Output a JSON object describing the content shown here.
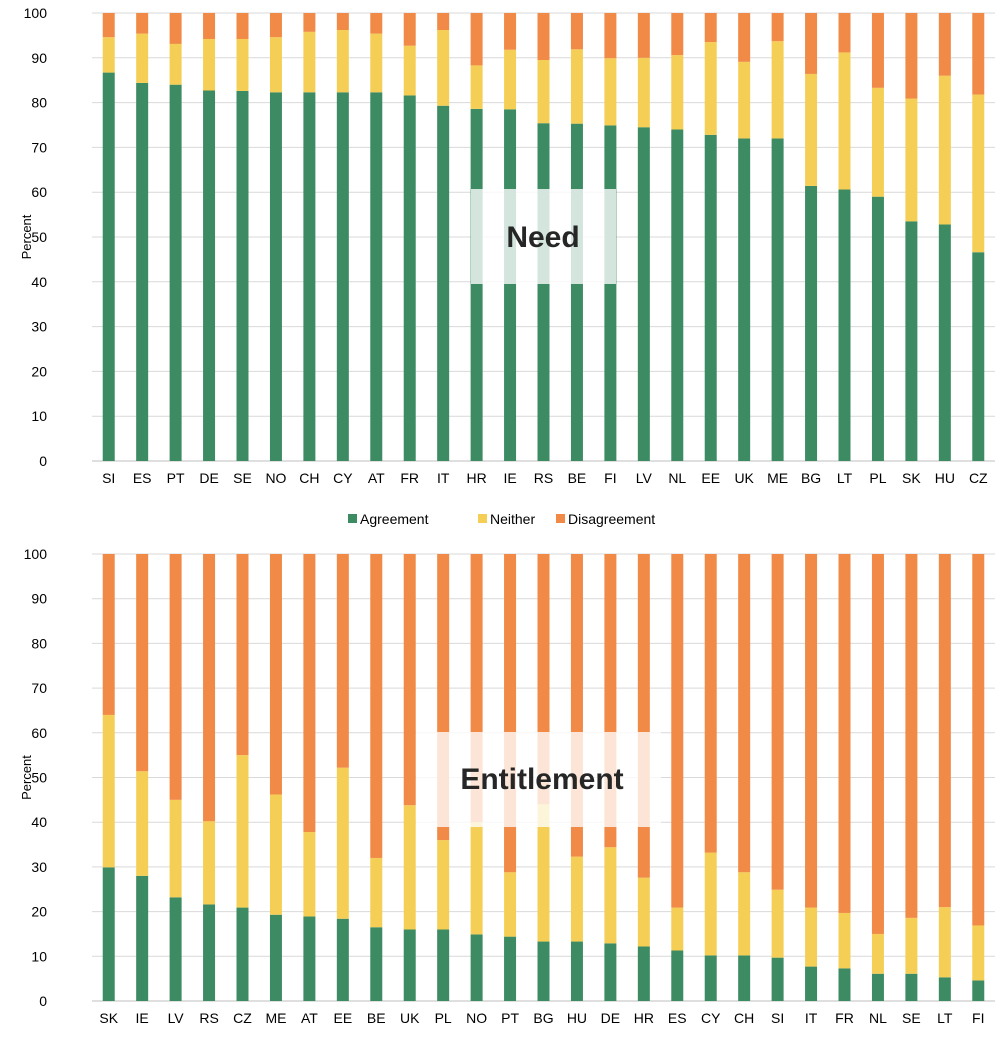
{
  "colors": {
    "agreement": "#3d8b63",
    "neither": "#f5cf55",
    "disagreement": "#f08a46",
    "grid": "#d9d9d9",
    "axis": "#bfbfbf"
  },
  "legend": [
    "Agreement",
    "Neither",
    "Disagreement"
  ],
  "chart_data": [
    {
      "type": "bar",
      "stacked": true,
      "overlay_label": "Need",
      "ylabel": "Percent",
      "ylim": [
        0,
        100
      ],
      "yticks": [
        0,
        10,
        20,
        30,
        40,
        50,
        60,
        70,
        80,
        90,
        100
      ],
      "grid": true,
      "categories": [
        "SI",
        "ES",
        "PT",
        "DE",
        "SE",
        "NO",
        "CH",
        "CY",
        "AT",
        "FR",
        "IT",
        "HR",
        "IE",
        "RS",
        "BE",
        "FI",
        "LV",
        "NL",
        "EE",
        "UK",
        "ME",
        "BG",
        "LT",
        "PL",
        "SK",
        "HU",
        "CZ"
      ],
      "series": [
        {
          "name": "Agreement",
          "values": [
            86.7,
            84.4,
            84.0,
            82.7,
            82.6,
            82.3,
            82.3,
            82.3,
            82.3,
            81.6,
            79.3,
            78.6,
            78.5,
            75.4,
            75.3,
            74.9,
            74.5,
            74.0,
            72.8,
            72.0,
            72.0,
            61.4,
            60.6,
            59.0,
            53.5,
            52.8,
            46.6
          ]
        },
        {
          "name": "Neither",
          "values": [
            7.9,
            11.0,
            9.1,
            11.5,
            11.6,
            12.3,
            13.5,
            13.9,
            13.1,
            11.1,
            16.9,
            9.7,
            13.3,
            14.1,
            16.6,
            15.0,
            15.5,
            16.6,
            20.7,
            17.1,
            21.7,
            25.0,
            30.6,
            24.3,
            27.4,
            33.2,
            35.2
          ]
        },
        {
          "name": "Disagreement",
          "values": [
            5.4,
            4.6,
            6.9,
            5.8,
            5.8,
            5.4,
            4.2,
            3.8,
            4.6,
            7.3,
            3.8,
            11.7,
            8.2,
            10.5,
            8.1,
            10.1,
            10.0,
            9.4,
            6.5,
            10.9,
            6.3,
            13.6,
            8.8,
            16.7,
            19.1,
            14.0,
            18.2
          ]
        }
      ]
    },
    {
      "type": "bar",
      "stacked": true,
      "overlay_label": "Entitlement",
      "ylabel": "Percent",
      "ylim": [
        0,
        100
      ],
      "yticks": [
        0,
        10,
        20,
        30,
        40,
        50,
        60,
        70,
        80,
        90,
        100
      ],
      "grid": true,
      "categories": [
        "SK",
        "IE",
        "LV",
        "RS",
        "CZ",
        "ME",
        "AT",
        "EE",
        "BE",
        "UK",
        "PL",
        "NO",
        "PT",
        "BG",
        "HU",
        "DE",
        "HR",
        "ES",
        "CY",
        "CH",
        "SI",
        "IT",
        "FR",
        "NL",
        "SE",
        "LT",
        "FI"
      ],
      "series": [
        {
          "name": "Agreement",
          "values": [
            29.9,
            28.0,
            23.2,
            21.6,
            20.9,
            19.3,
            18.9,
            18.4,
            16.5,
            16.0,
            16.0,
            14.9,
            14.4,
            13.3,
            13.3,
            12.9,
            12.2,
            11.3,
            10.2,
            10.2,
            9.7,
            7.7,
            7.3,
            6.1,
            6.1,
            5.3,
            4.6
          ]
        },
        {
          "name": "Neither",
          "values": [
            34.1,
            23.4,
            21.8,
            18.6,
            34.1,
            26.9,
            18.9,
            33.8,
            15.5,
            27.8,
            20.0,
            25.1,
            14.4,
            30.7,
            19.0,
            21.5,
            15.4,
            9.6,
            23.0,
            18.6,
            15.2,
            13.2,
            12.4,
            8.9,
            12.5,
            15.7,
            12.3
          ]
        },
        {
          "name": "Disagreement",
          "values": [
            36.0,
            48.6,
            55.0,
            59.8,
            45.0,
            53.8,
            62.2,
            47.8,
            68.0,
            56.2,
            64.0,
            60.0,
            71.2,
            56.0,
            67.7,
            65.6,
            72.4,
            79.1,
            66.8,
            71.2,
            75.1,
            79.1,
            80.3,
            85.0,
            81.4,
            79.0,
            83.1
          ]
        }
      ]
    }
  ]
}
